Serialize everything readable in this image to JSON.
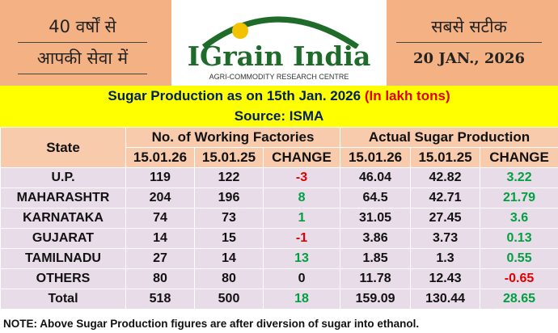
{
  "header": {
    "left_line1": "40 वर्षों से",
    "left_line2": "आपकी सेवा में",
    "logo_title": "IGrain India",
    "logo_subtitle": "AGRI-COMMODITY RESEARCH CENTRE",
    "right_line1": "सबसे सटीक",
    "right_date": "20 JAN., 2026"
  },
  "title": {
    "text": "Sugar Production as on 15th Jan. 2026",
    "unit": "(In lakh tons)",
    "source": "Source: ISMA"
  },
  "table": {
    "state_header": "State",
    "group_headers": [
      "No. of Working Factories",
      "Actual Sugar Production"
    ],
    "sub_headers": [
      "15.01.26",
      "15.01.25",
      "CHANGE",
      "15.01.26",
      "15.01.25",
      "CHANGE"
    ],
    "rows": [
      [
        "U.P.",
        119,
        122,
        -3,
        46.04,
        42.82,
        3.22
      ],
      [
        "MAHARASHTR",
        204,
        196,
        8,
        64.5,
        42.71,
        21.79
      ],
      [
        "KARNATAKA",
        74,
        73,
        1,
        31.05,
        27.45,
        3.6
      ],
      [
        "GUJARAT",
        14,
        15,
        -1,
        3.86,
        3.73,
        0.13
      ],
      [
        "TAMILNADU",
        27,
        14,
        13,
        1.85,
        1.3,
        0.55
      ],
      [
        "OTHERS",
        80,
        80,
        0,
        11.78,
        12.43,
        -0.65
      ],
      [
        "Total",
        518,
        500,
        18,
        159.09,
        130.44,
        28.65
      ]
    ]
  },
  "note": "NOTE: Above Sugar Production figures are after diversion of sugar into ethanol."
}
